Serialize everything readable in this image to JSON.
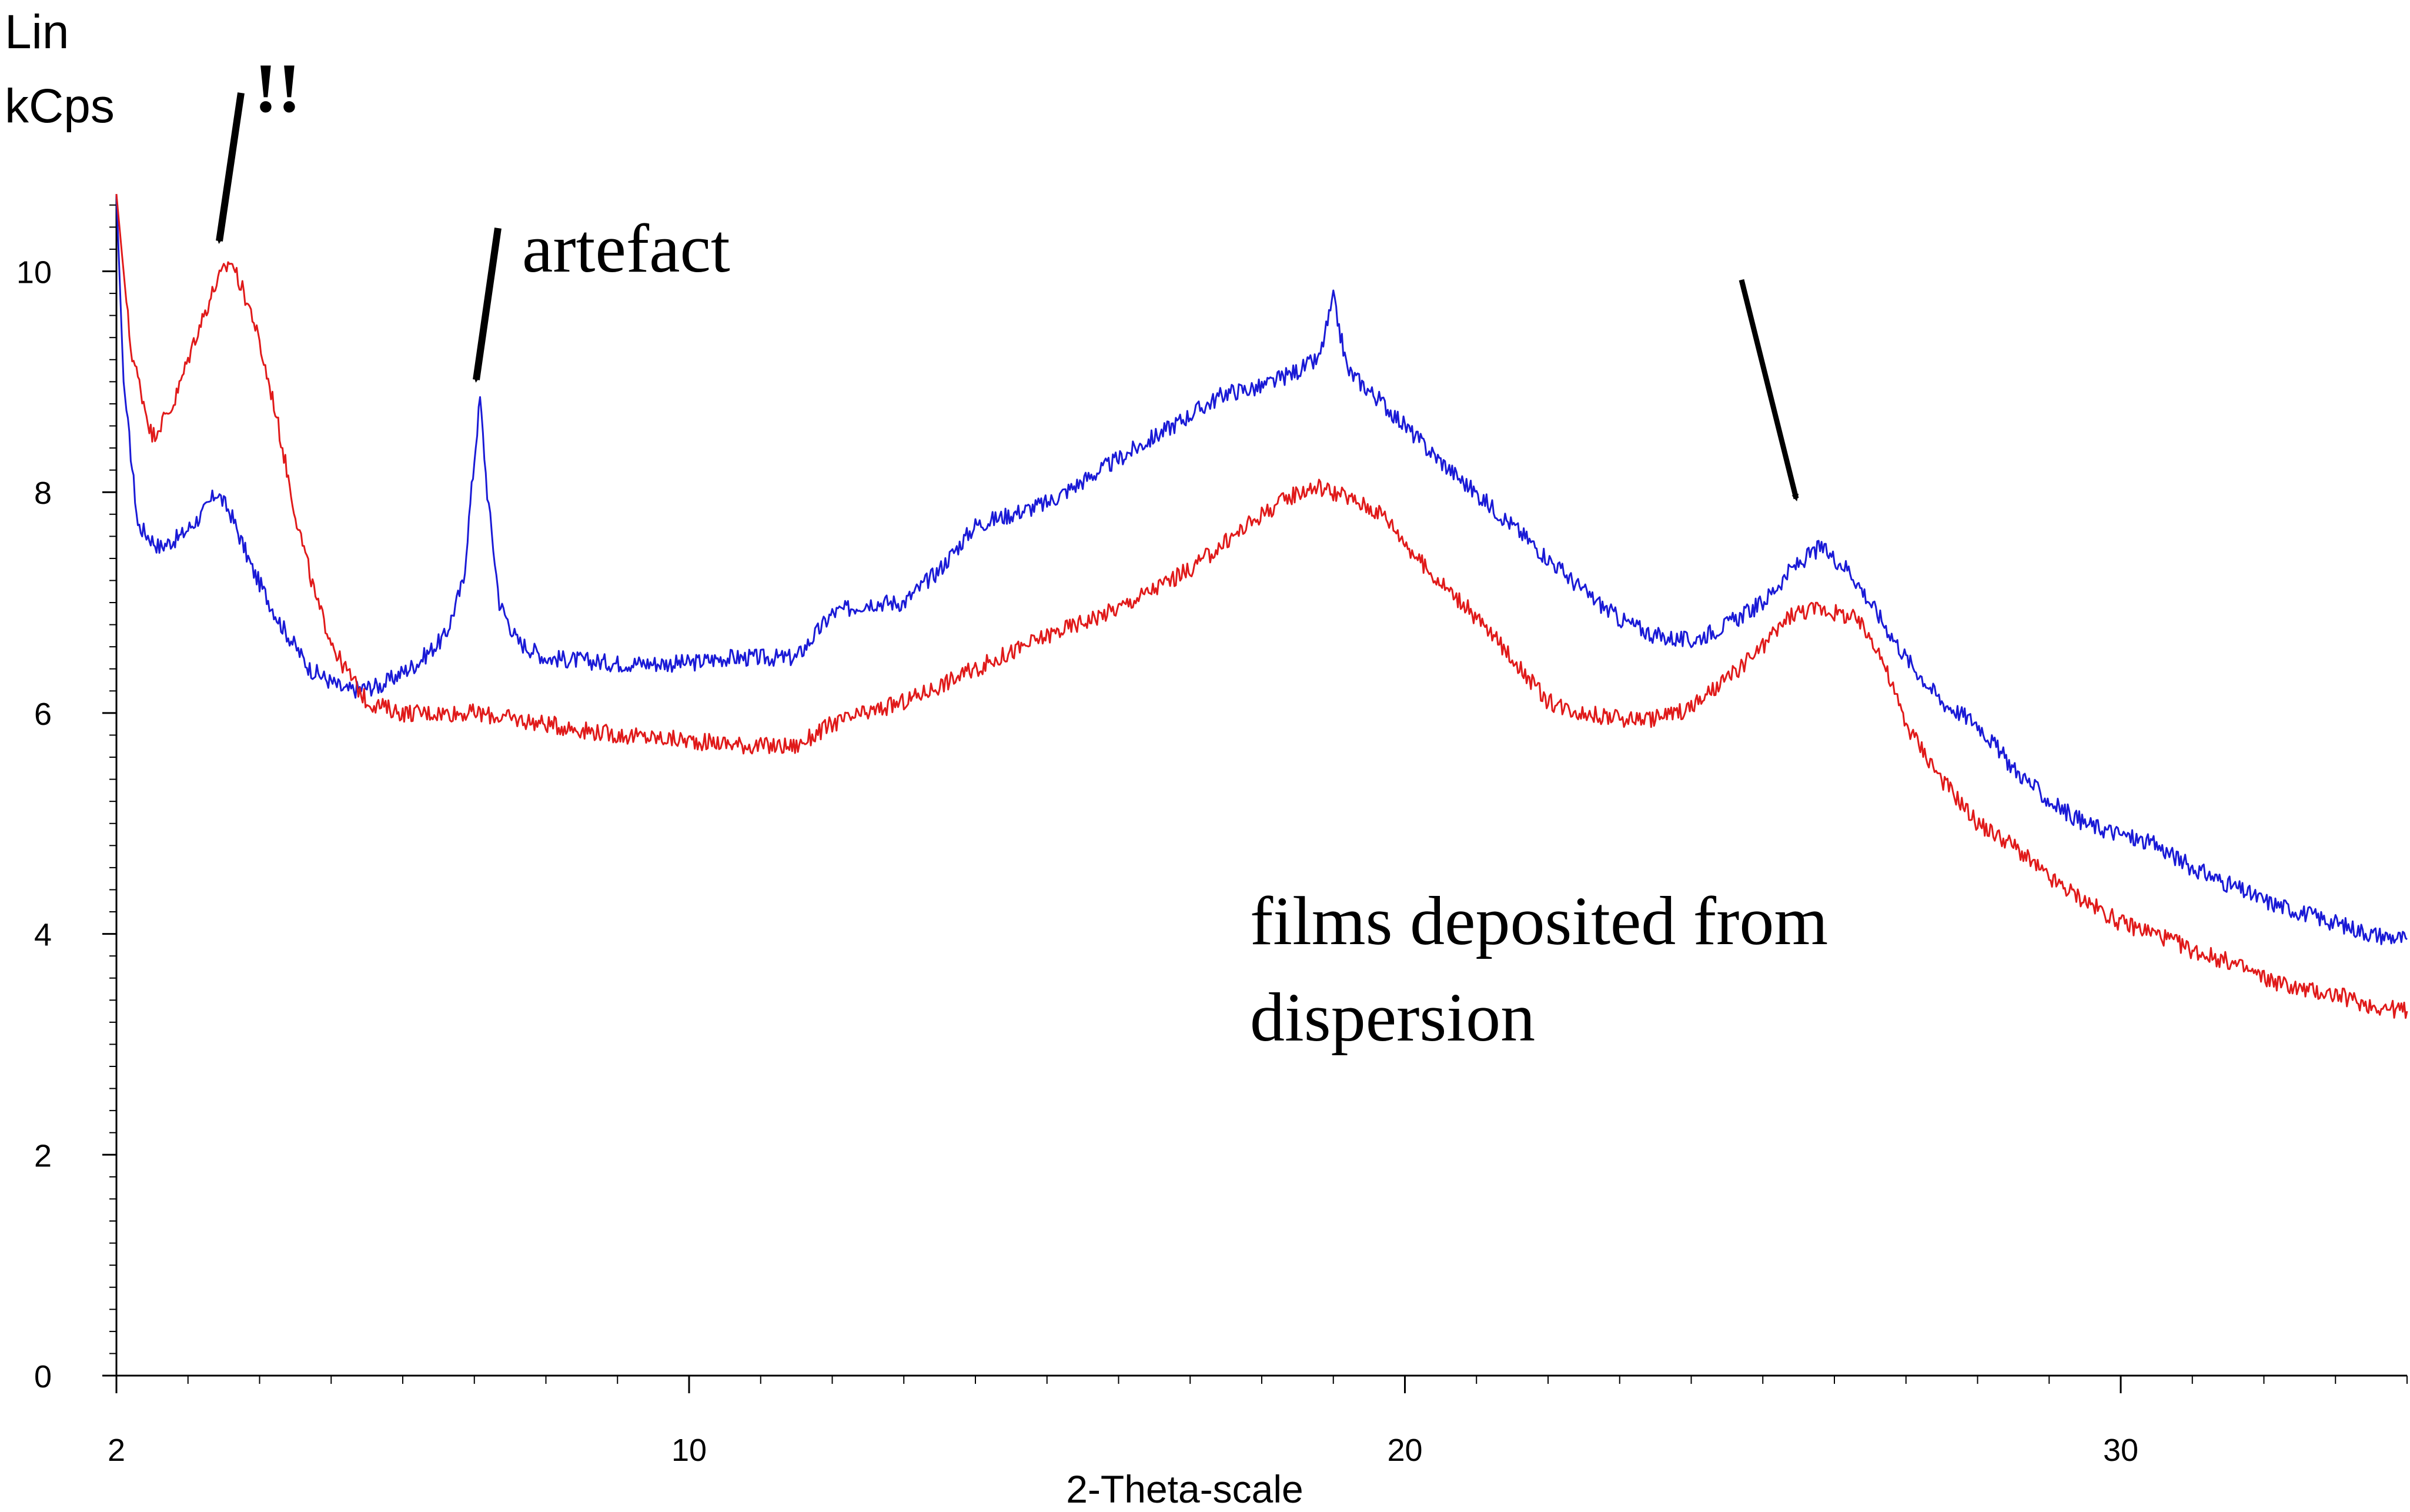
{
  "chart_data": {
    "type": "line",
    "title": "",
    "ylabel_lines": [
      "Lin",
      "kCps"
    ],
    "xlabel": "2-Theta-scale",
    "xlim": [
      2,
      34
    ],
    "ylim": [
      0,
      10.7
    ],
    "x_ticks": [
      2,
      10,
      20,
      30
    ],
    "y_ticks": [
      0,
      2,
      4,
      6,
      8,
      10
    ],
    "grid": false,
    "series": [
      {
        "color": "#1a1ad6",
        "points": [
          [
            2.0,
            10.7
          ],
          [
            2.1,
            9.0
          ],
          [
            2.3,
            7.7
          ],
          [
            2.6,
            7.5
          ],
          [
            2.9,
            7.6
          ],
          [
            3.2,
            7.8
          ],
          [
            3.4,
            8.0
          ],
          [
            3.6,
            7.8
          ],
          [
            3.9,
            7.3
          ],
          [
            4.3,
            6.8
          ],
          [
            4.7,
            6.4
          ],
          [
            5.2,
            6.2
          ],
          [
            5.7,
            6.25
          ],
          [
            6.2,
            6.45
          ],
          [
            6.6,
            6.7
          ],
          [
            6.85,
            7.2
          ],
          [
            7.0,
            8.3
          ],
          [
            7.08,
            8.85
          ],
          [
            7.18,
            8.0
          ],
          [
            7.35,
            7.0
          ],
          [
            7.6,
            6.65
          ],
          [
            8.0,
            6.5
          ],
          [
            9.0,
            6.45
          ],
          [
            10.0,
            6.45
          ],
          [
            10.5,
            6.5
          ],
          [
            11.5,
            6.5
          ],
          [
            12.0,
            6.9
          ],
          [
            12.5,
            7.0
          ],
          [
            13.0,
            7.0
          ],
          [
            13.5,
            7.3
          ],
          [
            14.0,
            7.7
          ],
          [
            14.5,
            7.8
          ],
          [
            15.0,
            7.9
          ],
          [
            15.5,
            8.1
          ],
          [
            16.0,
            8.3
          ],
          [
            16.5,
            8.5
          ],
          [
            17.0,
            8.7
          ],
          [
            17.5,
            8.9
          ],
          [
            18.0,
            8.95
          ],
          [
            18.5,
            9.1
          ],
          [
            18.8,
            9.2
          ],
          [
            19.0,
            9.75
          ],
          [
            19.2,
            9.1
          ],
          [
            19.7,
            8.8
          ],
          [
            20.3,
            8.4
          ],
          [
            20.8,
            8.1
          ],
          [
            21.5,
            7.7
          ],
          [
            22.0,
            7.4
          ],
          [
            22.5,
            7.1
          ],
          [
            23.0,
            6.85
          ],
          [
            23.5,
            6.7
          ],
          [
            24.0,
            6.65
          ],
          [
            24.5,
            6.8
          ],
          [
            25.0,
            7.0
          ],
          [
            25.4,
            7.3
          ],
          [
            25.8,
            7.5
          ],
          [
            26.2,
            7.3
          ],
          [
            26.6,
            6.9
          ],
          [
            27.0,
            6.5
          ],
          [
            27.5,
            6.1
          ],
          [
            28.0,
            5.9
          ],
          [
            28.5,
            5.5
          ],
          [
            29.0,
            5.2
          ],
          [
            29.5,
            5.0
          ],
          [
            30.0,
            4.9
          ],
          [
            30.5,
            4.8
          ],
          [
            31.0,
            4.6
          ],
          [
            31.5,
            4.45
          ],
          [
            32.0,
            4.3
          ],
          [
            32.5,
            4.2
          ],
          [
            33.0,
            4.1
          ],
          [
            33.5,
            4.0
          ],
          [
            34.0,
            3.95
          ]
        ]
      },
      {
        "color": "#e01a1a",
        "points": [
          [
            2.0,
            10.7
          ],
          [
            2.2,
            9.3
          ],
          [
            2.5,
            8.5
          ],
          [
            2.8,
            8.8
          ],
          [
            3.1,
            9.4
          ],
          [
            3.4,
            9.9
          ],
          [
            3.6,
            10.1
          ],
          [
            3.9,
            9.6
          ],
          [
            4.2,
            8.8
          ],
          [
            4.5,
            7.8
          ],
          [
            4.8,
            7.0
          ],
          [
            5.1,
            6.5
          ],
          [
            5.5,
            6.1
          ],
          [
            6.0,
            6.0
          ],
          [
            7.0,
            6.0
          ],
          [
            8.0,
            5.9
          ],
          [
            9.0,
            5.8
          ],
          [
            10.0,
            5.75
          ],
          [
            11.0,
            5.7
          ],
          [
            11.5,
            5.7
          ],
          [
            12.0,
            5.9
          ],
          [
            13.0,
            6.1
          ],
          [
            14.0,
            6.4
          ],
          [
            15.0,
            6.7
          ],
          [
            16.0,
            6.95
          ],
          [
            17.0,
            7.3
          ],
          [
            17.5,
            7.55
          ],
          [
            18.0,
            7.8
          ],
          [
            18.5,
            8.0
          ],
          [
            18.8,
            8.05
          ],
          [
            19.2,
            7.95
          ],
          [
            19.7,
            7.8
          ],
          [
            20.3,
            7.3
          ],
          [
            20.8,
            7.0
          ],
          [
            21.5,
            6.5
          ],
          [
            22.0,
            6.1
          ],
          [
            22.5,
            6.0
          ],
          [
            23.0,
            5.95
          ],
          [
            23.5,
            5.95
          ],
          [
            24.0,
            6.05
          ],
          [
            24.5,
            6.3
          ],
          [
            25.0,
            6.6
          ],
          [
            25.4,
            6.9
          ],
          [
            25.8,
            6.95
          ],
          [
            26.3,
            6.85
          ],
          [
            26.6,
            6.6
          ],
          [
            27.0,
            5.9
          ],
          [
            27.5,
            5.4
          ],
          [
            28.0,
            5.0
          ],
          [
            28.5,
            4.8
          ],
          [
            29.0,
            4.5
          ],
          [
            29.5,
            4.3
          ],
          [
            30.0,
            4.1
          ],
          [
            30.5,
            4.0
          ],
          [
            31.0,
            3.85
          ],
          [
            31.5,
            3.75
          ],
          [
            32.0,
            3.6
          ],
          [
            32.5,
            3.5
          ],
          [
            33.0,
            3.45
          ],
          [
            33.5,
            3.35
          ],
          [
            34.0,
            3.3
          ]
        ]
      }
    ],
    "annotations": [
      {
        "text": "!!",
        "x": 3.4,
        "y": 10.1
      },
      {
        "text": "artefact",
        "x": 7.1,
        "y": 8.9
      },
      {
        "text": "",
        "x": 25.8,
        "y": 7.6
      },
      {
        "text": "films deposited from dispersion",
        "lines": [
          "films deposited from",
          "dispersion"
        ],
        "x": 25.0,
        "y": 3.6
      }
    ]
  }
}
